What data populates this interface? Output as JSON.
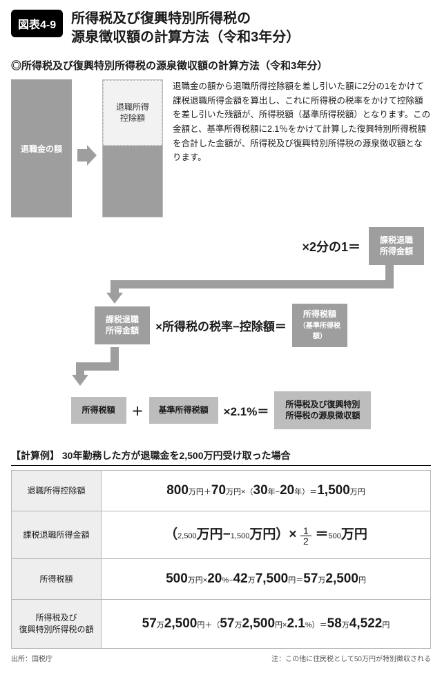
{
  "colors": {
    "gray_dark": "#9e9e9e",
    "gray_mid": "#bdbdbd",
    "gray_light": "#eeeeee",
    "border": "#b5b5b5",
    "text": "#1a1a1a",
    "bg": "#ffffff"
  },
  "header": {
    "badge": "図表4-9",
    "title_l1": "所得税及び復興特別所得税の",
    "title_l2": "源泉徴収額の計算方法（令和3年分）"
  },
  "subtitle": "◎所得税及び復興特別所得税の源泉徴収額の計算方法（令和3年分）",
  "diagram": {
    "bar_full_label": "退職金の額",
    "bar_split_top": "退職所得\n控除額",
    "desc": "退職金の額から退職所得控除額を差し引いた額に2分の1をかけて課税退職所得金額を算出し、これに所得税の税率をかけて控除額を差し引いた残額が、所得税額（基準所得税額）となります。この金額と、基準所得税額に2.1％をかけて計算した復興特別所得税額を合計した金額が、所得税及び復興特別所得税の源泉徴収額となります。",
    "row1_op": "×2分の1＝",
    "row1_box": "課税退職\n所得金額",
    "row2_left": "課税退職\n所得金額",
    "row2_op": "×所得税の税率−控除額＝",
    "row2_right_l1": "所得税額",
    "row2_right_l2": "（基準所得税額）",
    "row3_a": "所得税額",
    "row3_plus": "＋",
    "row3_b": "基準所得税額",
    "row3_op": "×2.1%＝",
    "row3_c": "所得税及び復興特別\n所得税の源泉徴収額"
  },
  "example": {
    "title": "【計算例】 30年勤務した方が退職金を2,500万円受け取った場合",
    "rows": [
      {
        "label": "退職所得控除額",
        "parts": [
          "800",
          "万円＋",
          "70",
          "万円×（",
          "30",
          "年−",
          "20",
          "年）＝",
          "1,500",
          "万円"
        ]
      },
      {
        "label": "課税退職所得金額",
        "parts_pre": [
          "（",
          "2,500",
          "万円−",
          "1,500",
          "万円）×"
        ],
        "frac_n": "1",
        "frac_d": "2",
        "parts_post": [
          "＝",
          "500",
          "万円"
        ]
      },
      {
        "label": "所得税額",
        "parts": [
          "500",
          "万円×",
          "20",
          "%−",
          "42",
          "万",
          "7,500",
          "円＝",
          "57",
          "万",
          "2,500",
          "円"
        ]
      },
      {
        "label": "所得税及び\n復興特別所得税の額",
        "parts": [
          "57",
          "万",
          "2,500",
          "円＋（",
          "57",
          "万",
          "2,500",
          "円×",
          "2.1",
          "%）＝",
          "58",
          "万",
          "4,522",
          "円"
        ]
      }
    ]
  },
  "footer": {
    "left": "出所：国税庁",
    "right": "注：この他に住民税として50万円が特別徴収される"
  }
}
